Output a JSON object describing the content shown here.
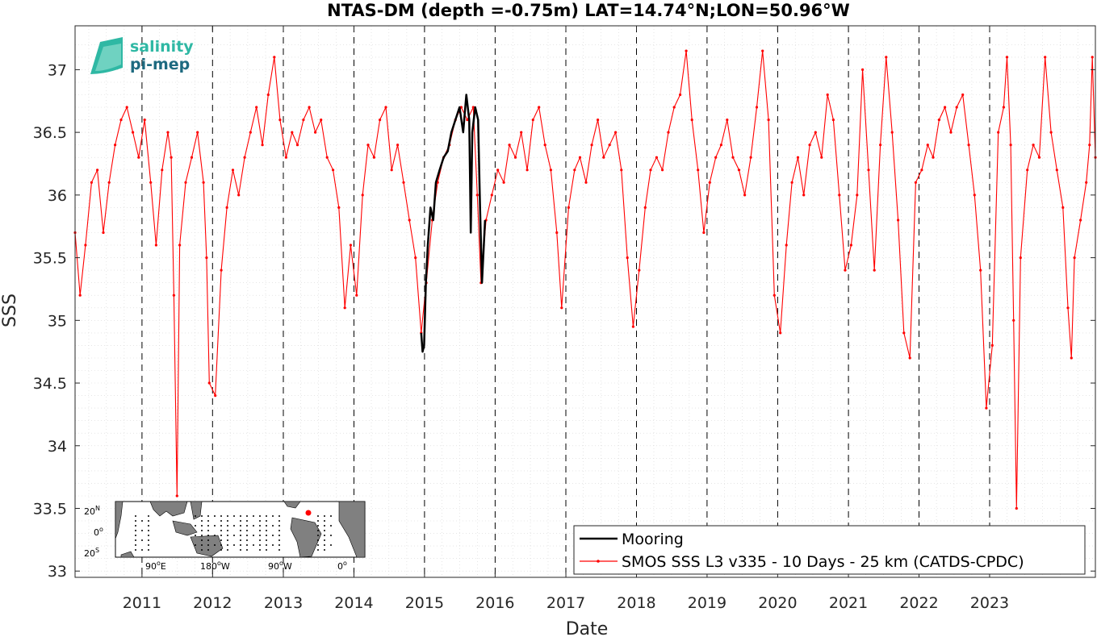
{
  "chart_data": {
    "type": "line",
    "title": "NTAS-DM (depth =-0.75m) LAT=14.74°N;LON=50.96°W",
    "xlabel": "Date",
    "ylabel": "SSS",
    "xlim": [
      "2010-01-20",
      "2024-07-01"
    ],
    "ylim": [
      32.95,
      37.35
    ],
    "y_ticks": [
      "33",
      "33.5",
      "34",
      "34.5",
      "35",
      "35.5",
      "36",
      "36.5",
      "37"
    ],
    "x_ticks": [
      "2011",
      "2012",
      "2013",
      "2014",
      "2015",
      "2016",
      "2017",
      "2018",
      "2019",
      "2020",
      "2021",
      "2022",
      "2023"
    ],
    "year_lines": [
      "2011",
      "2012",
      "2013",
      "2014",
      "2015",
      "2016",
      "2017",
      "2018",
      "2019",
      "2020",
      "2021",
      "2022",
      "2023"
    ],
    "grid": true,
    "legend_position": "bottom-right",
    "colors": {
      "mooring": "#000000",
      "smos": "#ff0000"
    },
    "series": [
      {
        "name": "Mooring",
        "style": "line",
        "points": [
          [
            "2014-12-15",
            34.9
          ],
          [
            "2014-12-22",
            34.75
          ],
          [
            "2014-12-30",
            34.8
          ],
          [
            "2015-01-08",
            35.3
          ],
          [
            "2015-01-18",
            35.6
          ],
          [
            "2015-02-01",
            35.9
          ],
          [
            "2015-02-15",
            35.8
          ],
          [
            "2015-03-01",
            36.1
          ],
          [
            "2015-03-20",
            36.2
          ],
          [
            "2015-04-10",
            36.3
          ],
          [
            "2015-05-01",
            36.35
          ],
          [
            "2015-05-20",
            36.5
          ],
          [
            "2015-06-10",
            36.6
          ],
          [
            "2015-07-01",
            36.7
          ],
          [
            "2015-07-20",
            36.5
          ],
          [
            "2015-08-05",
            36.8
          ],
          [
            "2015-08-20",
            36.6
          ],
          [
            "2015-08-28",
            35.7
          ],
          [
            "2015-09-05",
            36.5
          ],
          [
            "2015-09-20",
            36.7
          ],
          [
            "2015-10-05",
            36.6
          ],
          [
            "2015-10-15",
            35.9
          ],
          [
            "2015-10-25",
            35.3
          ],
          [
            "2015-11-10",
            35.8
          ]
        ]
      },
      {
        "name": "SMOS SSS L3 v335 - 10 Days - 25 km (CATDS-CPDC)",
        "style": "line-markers",
        "points": [
          [
            "2010-01-20",
            35.7
          ],
          [
            "2010-02-15",
            35.2
          ],
          [
            "2010-03-15",
            35.6
          ],
          [
            "2010-04-15",
            36.1
          ],
          [
            "2010-05-15",
            36.2
          ],
          [
            "2010-06-15",
            35.7
          ],
          [
            "2010-07-15",
            36.1
          ],
          [
            "2010-08-15",
            36.4
          ],
          [
            "2010-09-15",
            36.6
          ],
          [
            "2010-10-15",
            36.7
          ],
          [
            "2010-11-15",
            36.5
          ],
          [
            "2010-12-15",
            36.3
          ],
          [
            "2011-01-15",
            36.6
          ],
          [
            "2011-02-15",
            36.1
          ],
          [
            "2011-03-15",
            35.6
          ],
          [
            "2011-04-15",
            36.2
          ],
          [
            "2011-05-15",
            36.5
          ],
          [
            "2011-06-01",
            36.3
          ],
          [
            "2011-06-15",
            35.2
          ],
          [
            "2011-07-01",
            33.6
          ],
          [
            "2011-07-15",
            35.6
          ],
          [
            "2011-08-15",
            36.1
          ],
          [
            "2011-09-15",
            36.3
          ],
          [
            "2011-10-15",
            36.5
          ],
          [
            "2011-11-15",
            36.1
          ],
          [
            "2011-12-01",
            35.5
          ],
          [
            "2011-12-15",
            34.5
          ],
          [
            "2012-01-15",
            34.4
          ],
          [
            "2012-02-15",
            35.4
          ],
          [
            "2012-03-15",
            35.9
          ],
          [
            "2012-04-15",
            36.2
          ],
          [
            "2012-05-15",
            36.0
          ],
          [
            "2012-06-15",
            36.3
          ],
          [
            "2012-07-15",
            36.5
          ],
          [
            "2012-08-15",
            36.7
          ],
          [
            "2012-09-15",
            36.4
          ],
          [
            "2012-10-15",
            36.8
          ],
          [
            "2012-11-15",
            37.1
          ],
          [
            "2012-12-15",
            36.6
          ],
          [
            "2013-01-15",
            36.3
          ],
          [
            "2013-02-15",
            36.5
          ],
          [
            "2013-03-15",
            36.4
          ],
          [
            "2013-04-15",
            36.6
          ],
          [
            "2013-05-15",
            36.7
          ],
          [
            "2013-06-15",
            36.5
          ],
          [
            "2013-07-15",
            36.6
          ],
          [
            "2013-08-15",
            36.3
          ],
          [
            "2013-09-15",
            36.2
          ],
          [
            "2013-10-15",
            35.9
          ],
          [
            "2013-11-15",
            35.1
          ],
          [
            "2013-12-15",
            35.6
          ],
          [
            "2014-01-15",
            35.2
          ],
          [
            "2014-02-15",
            36.0
          ],
          [
            "2014-03-15",
            36.4
          ],
          [
            "2014-04-15",
            36.3
          ],
          [
            "2014-05-15",
            36.6
          ],
          [
            "2014-06-15",
            36.7
          ],
          [
            "2014-07-15",
            36.2
          ],
          [
            "2014-08-15",
            36.4
          ],
          [
            "2014-09-15",
            36.1
          ],
          [
            "2014-10-15",
            35.8
          ],
          [
            "2014-11-15",
            35.5
          ],
          [
            "2014-12-15",
            34.9
          ],
          [
            "2015-01-10",
            35.3
          ],
          [
            "2015-02-10",
            35.8
          ],
          [
            "2015-03-10",
            36.1
          ],
          [
            "2015-04-10",
            36.3
          ],
          [
            "2015-05-10",
            36.4
          ],
          [
            "2015-06-10",
            36.6
          ],
          [
            "2015-07-10",
            36.7
          ],
          [
            "2015-08-10",
            36.6
          ],
          [
            "2015-09-10",
            36.7
          ],
          [
            "2015-10-01",
            36.0
          ],
          [
            "2015-10-20",
            35.3
          ],
          [
            "2015-11-15",
            35.8
          ],
          [
            "2015-12-15",
            36.0
          ],
          [
            "2016-01-15",
            36.2
          ],
          [
            "2016-02-15",
            36.1
          ],
          [
            "2016-03-15",
            36.4
          ],
          [
            "2016-04-15",
            36.3
          ],
          [
            "2016-05-15",
            36.5
          ],
          [
            "2016-06-15",
            36.2
          ],
          [
            "2016-07-15",
            36.6
          ],
          [
            "2016-08-15",
            36.7
          ],
          [
            "2016-09-15",
            36.4
          ],
          [
            "2016-10-15",
            36.2
          ],
          [
            "2016-11-15",
            35.7
          ],
          [
            "2016-12-10",
            35.1
          ],
          [
            "2017-01-15",
            35.9
          ],
          [
            "2017-02-15",
            36.2
          ],
          [
            "2017-03-15",
            36.3
          ],
          [
            "2017-04-15",
            36.1
          ],
          [
            "2017-05-15",
            36.4
          ],
          [
            "2017-06-15",
            36.6
          ],
          [
            "2017-07-15",
            36.3
          ],
          [
            "2017-08-15",
            36.4
          ],
          [
            "2017-09-15",
            36.5
          ],
          [
            "2017-10-15",
            36.2
          ],
          [
            "2017-11-15",
            35.5
          ],
          [
            "2017-12-15",
            34.95
          ],
          [
            "2018-01-15",
            35.4
          ],
          [
            "2018-02-15",
            35.9
          ],
          [
            "2018-03-15",
            36.2
          ],
          [
            "2018-04-15",
            36.3
          ],
          [
            "2018-05-15",
            36.2
          ],
          [
            "2018-06-15",
            36.5
          ],
          [
            "2018-07-15",
            36.7
          ],
          [
            "2018-08-15",
            36.8
          ],
          [
            "2018-09-15",
            37.15
          ],
          [
            "2018-10-15",
            36.6
          ],
          [
            "2018-11-15",
            36.2
          ],
          [
            "2018-12-15",
            35.7
          ],
          [
            "2019-01-15",
            36.1
          ],
          [
            "2019-02-15",
            36.3
          ],
          [
            "2019-03-15",
            36.4
          ],
          [
            "2019-04-15",
            36.6
          ],
          [
            "2019-05-15",
            36.3
          ],
          [
            "2019-06-15",
            36.2
          ],
          [
            "2019-07-15",
            36.0
          ],
          [
            "2019-08-15",
            36.3
          ],
          [
            "2019-09-15",
            36.7
          ],
          [
            "2019-10-15",
            37.15
          ],
          [
            "2019-11-15",
            36.6
          ],
          [
            "2019-12-15",
            35.2
          ],
          [
            "2020-01-15",
            34.9
          ],
          [
            "2020-02-15",
            35.6
          ],
          [
            "2020-03-15",
            36.1
          ],
          [
            "2020-04-15",
            36.3
          ],
          [
            "2020-05-15",
            36.0
          ],
          [
            "2020-06-15",
            36.4
          ],
          [
            "2020-07-15",
            36.5
          ],
          [
            "2020-08-15",
            36.3
          ],
          [
            "2020-09-15",
            36.8
          ],
          [
            "2020-10-15",
            36.6
          ],
          [
            "2020-11-15",
            36.0
          ],
          [
            "2020-12-15",
            35.4
          ],
          [
            "2021-01-15",
            35.6
          ],
          [
            "2021-02-15",
            36.0
          ],
          [
            "2021-03-15",
            37.0
          ],
          [
            "2021-04-15",
            36.2
          ],
          [
            "2021-05-15",
            35.4
          ],
          [
            "2021-06-15",
            36.4
          ],
          [
            "2021-07-15",
            37.1
          ],
          [
            "2021-08-15",
            36.5
          ],
          [
            "2021-09-15",
            35.8
          ],
          [
            "2021-10-15",
            34.9
          ],
          [
            "2021-11-15",
            34.7
          ],
          [
            "2021-12-15",
            36.1
          ],
          [
            "2022-01-15",
            36.2
          ],
          [
            "2022-02-15",
            36.4
          ],
          [
            "2022-03-15",
            36.3
          ],
          [
            "2022-04-15",
            36.6
          ],
          [
            "2022-05-15",
            36.7
          ],
          [
            "2022-06-15",
            36.5
          ],
          [
            "2022-07-15",
            36.7
          ],
          [
            "2022-08-15",
            36.8
          ],
          [
            "2022-09-15",
            36.4
          ],
          [
            "2022-10-15",
            36.0
          ],
          [
            "2022-11-15",
            35.4
          ],
          [
            "2022-12-15",
            34.3
          ],
          [
            "2023-01-15",
            34.8
          ],
          [
            "2023-02-15",
            36.5
          ],
          [
            "2023-03-15",
            36.7
          ],
          [
            "2023-04-01",
            37.1
          ],
          [
            "2023-04-20",
            36.4
          ],
          [
            "2023-05-05",
            35.0
          ],
          [
            "2023-05-20",
            33.5
          ],
          [
            "2023-06-10",
            35.5
          ],
          [
            "2023-07-15",
            36.2
          ],
          [
            "2023-08-15",
            36.4
          ],
          [
            "2023-09-15",
            36.3
          ],
          [
            "2023-10-15",
            37.1
          ],
          [
            "2023-11-15",
            36.5
          ],
          [
            "2023-12-15",
            36.2
          ],
          [
            "2024-01-15",
            35.9
          ],
          [
            "2024-02-10",
            35.1
          ],
          [
            "2024-02-28",
            34.7
          ],
          [
            "2024-03-15",
            35.5
          ],
          [
            "2024-04-15",
            35.8
          ],
          [
            "2024-05-15",
            36.1
          ],
          [
            "2024-06-01",
            36.4
          ],
          [
            "2024-06-15",
            37.1
          ],
          [
            "2024-07-01",
            36.3
          ]
        ]
      }
    ]
  },
  "logo": {
    "line1": "salinity",
    "line2": "pi-mep"
  },
  "inset_map": {
    "y_labels": [
      "20",
      "0",
      "20"
    ],
    "y_suffix": [
      "N",
      "",
      "S"
    ],
    "x_labels": [
      "90",
      "180",
      "90",
      "0"
    ],
    "x_suffix": [
      "E",
      "W",
      "W",
      ""
    ],
    "land_color": "#808080",
    "marker_color": "#ff0000"
  }
}
